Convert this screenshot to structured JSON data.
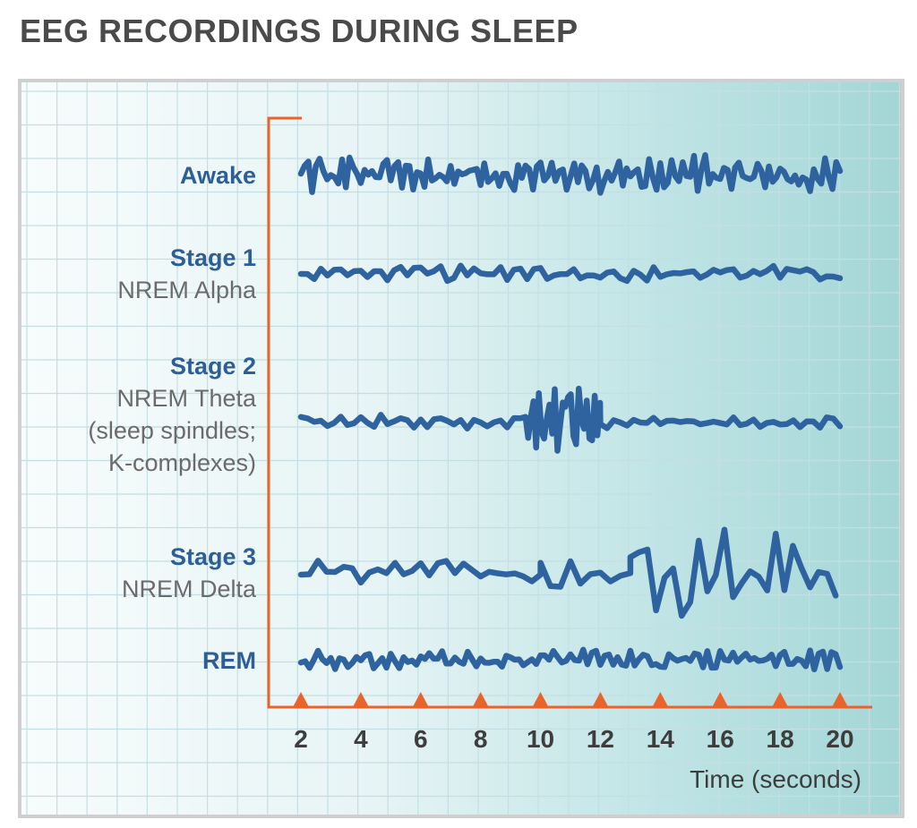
{
  "title": "EEG RECORDINGS DURING SLEEP",
  "colors": {
    "trace": "#2f63a0",
    "axis": "#e8642a",
    "grid": "#c4dfe3",
    "label_blue": "#2d5f96",
    "label_gray": "#6b6b6b"
  },
  "chart_data": {
    "type": "line",
    "title": "EEG RECORDINGS DURING SLEEP",
    "xlabel": "Time (seconds)",
    "ylabel": "",
    "x_ticks": [
      "2",
      "4",
      "6",
      "8",
      "10",
      "12",
      "14",
      "16",
      "18",
      "20"
    ],
    "xlim": [
      2,
      20
    ],
    "grid": true,
    "series": [
      {
        "name": "Awake",
        "label_lines": [
          {
            "text": "Awake",
            "style": "blue"
          }
        ],
        "amplitude": 0.9,
        "segments": [
          [
            2,
            20,
            0.9,
            3.2
          ]
        ]
      },
      {
        "name": "Stage 1",
        "label_lines": [
          {
            "text": "Stage 1",
            "style": "blue"
          },
          {
            "text": "NREM Alpha",
            "style": "gray"
          }
        ],
        "amplitude": 0.35,
        "segments": [
          [
            2,
            20,
            0.35,
            1.8
          ]
        ]
      },
      {
        "name": "Stage 2",
        "label_lines": [
          {
            "text": "Stage 2",
            "style": "blue"
          },
          {
            "text": "NREM Theta",
            "style": "gray"
          },
          {
            "text": "(sleep spindles;",
            "style": "gray"
          },
          {
            "text": "K-complexes)",
            "style": "gray"
          }
        ],
        "amplitude": 0.35,
        "segments": [
          [
            2,
            9.5,
            0.35,
            1.8
          ],
          [
            9.5,
            12,
            1.6,
            4.5
          ],
          [
            12,
            20,
            0.25,
            1.8
          ]
        ]
      },
      {
        "name": "Stage 3",
        "label_lines": [
          {
            "text": "Stage 3",
            "style": "blue"
          },
          {
            "text": "NREM Delta",
            "style": "gray"
          }
        ],
        "amplitude": 1.0,
        "segments": [
          [
            2,
            10,
            0.6,
            1.4
          ],
          [
            10,
            13,
            1.0,
            1.2
          ],
          [
            13,
            20,
            2.0,
            1.4
          ]
        ]
      },
      {
        "name": "REM",
        "label_lines": [
          {
            "text": "REM",
            "style": "blue"
          }
        ],
        "amplitude": 0.45,
        "segments": [
          [
            2,
            20,
            0.45,
            2.8
          ]
        ]
      }
    ]
  }
}
